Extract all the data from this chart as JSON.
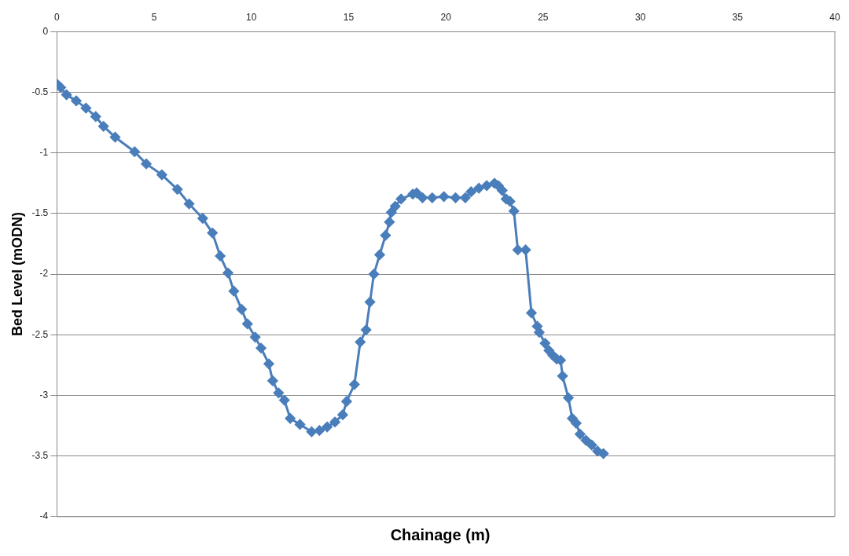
{
  "chart_data": {
    "type": "line",
    "xlabel": "Chainage (m)",
    "ylabel": "Bed Level (mODN)",
    "xlim": [
      0,
      40
    ],
    "xticks": [
      0,
      5,
      10,
      15,
      20,
      25,
      30,
      35,
      40
    ],
    "ylim": [
      -4,
      0
    ],
    "yticks": [
      0,
      -0.5,
      -1,
      -1.5,
      -2,
      -2.5,
      -3,
      -3.5,
      -4
    ],
    "grid": "y",
    "legend": false,
    "marker": "diamond",
    "line_style": "solid",
    "series": [
      {
        "color": "#4a7ebb",
        "x": [
          0,
          0.2,
          0.5,
          1,
          1.5,
          2,
          2.4,
          3,
          4,
          4.6,
          5.4,
          6.2,
          6.8,
          7.5,
          8,
          8.4,
          8.8,
          9.1,
          9.5,
          9.8,
          10.2,
          10.5,
          10.9,
          11.1,
          11.4,
          11.7,
          12,
          12.5,
          13.1,
          13.5,
          13.9,
          14.3,
          14.7,
          14.9,
          15.3,
          15.6,
          15.9,
          16.1,
          16.3,
          16.6,
          16.9,
          17.1,
          17.2,
          17.4,
          17.7,
          18.3,
          18.5,
          18.8,
          19.3,
          19.9,
          20.5,
          21,
          21.3,
          21.7,
          22.1,
          22.5,
          22.7,
          22.9,
          23.1,
          23.3,
          23.5,
          23.7,
          24.1,
          24.4,
          24.7,
          24.8,
          25.1,
          25.3,
          25.5,
          25.7,
          25.9,
          26,
          26.3,
          26.5,
          26.7,
          26.9,
          27.2,
          27.5,
          27.8,
          28.1
        ],
        "values": [
          -0.43,
          -0.46,
          -0.52,
          -0.57,
          -0.63,
          -0.7,
          -0.78,
          -0.87,
          -0.99,
          -1.09,
          -1.18,
          -1.3,
          -1.42,
          -1.54,
          -1.66,
          -1.85,
          -1.99,
          -2.14,
          -2.29,
          -2.41,
          -2.52,
          -2.61,
          -2.74,
          -2.88,
          -2.98,
          -3.04,
          -3.19,
          -3.24,
          -3.3,
          -3.29,
          -3.26,
          -3.22,
          -3.16,
          -3.05,
          -2.91,
          -2.56,
          -2.46,
          -2.23,
          -2,
          -1.84,
          -1.68,
          -1.57,
          -1.49,
          -1.44,
          -1.38,
          -1.34,
          -1.33,
          -1.37,
          -1.37,
          -1.36,
          -1.37,
          -1.37,
          -1.32,
          -1.29,
          -1.27,
          -1.25,
          -1.27,
          -1.31,
          -1.38,
          -1.4,
          -1.48,
          -1.8,
          -1.8,
          -2.32,
          -2.43,
          -2.48,
          -2.57,
          -2.63,
          -2.67,
          -2.7,
          -2.71,
          -2.84,
          -3.02,
          -3.19,
          -3.23,
          -3.32,
          -3.37,
          -3.41,
          -3.46,
          -3.48
        ]
      }
    ]
  }
}
